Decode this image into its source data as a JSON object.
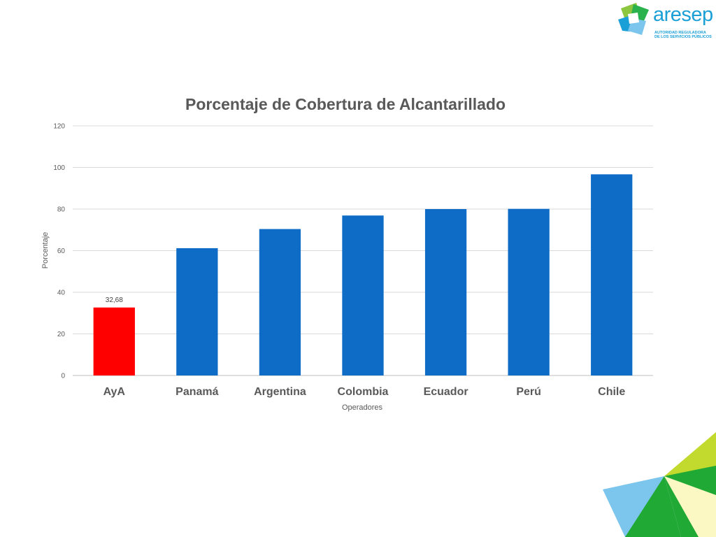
{
  "logo": {
    "name": "aresep",
    "subtitle_line1": "AUTORIDAD REGULADORA",
    "subtitle_line2": "DE LOS SERVICIOS PÚBLICOS",
    "colors": {
      "blue": "#1a9fd6",
      "green": "#8dc63f",
      "dark_green": "#2bb24c"
    }
  },
  "chart_data": {
    "type": "bar",
    "title": "Porcentaje de Cobertura de Alcantarillado",
    "xlabel": "Operadores",
    "ylabel": "Porcentaje",
    "categories": [
      "AyA",
      "Panamá",
      "Argentina",
      "Colombia",
      "Ecuador",
      "Perú",
      "Chile"
    ],
    "values": [
      32.68,
      61.2,
      70.4,
      76.9,
      80.0,
      80.1,
      96.7
    ],
    "bar_colors": [
      "#ff0000",
      "#0f6cc6",
      "#0f6cc6",
      "#0f6cc6",
      "#0f6cc6",
      "#0f6cc6",
      "#0f6cc6"
    ],
    "data_labels": [
      "32,68",
      "",
      "",
      "",
      "",
      "",
      ""
    ],
    "ylim": [
      0,
      120
    ],
    "yticks": [
      0,
      20,
      40,
      60,
      80,
      100,
      120
    ],
    "ytick_labels": [
      "0",
      "20",
      "40",
      "60",
      "80",
      "100",
      "120"
    ],
    "grid": true,
    "legend": "none"
  },
  "decoration": {
    "colors": {
      "light_blue": "#7cc5ec",
      "green": "#21a935",
      "lime": "#c2d92e",
      "pale_yellow": "#fcf8c4"
    }
  }
}
